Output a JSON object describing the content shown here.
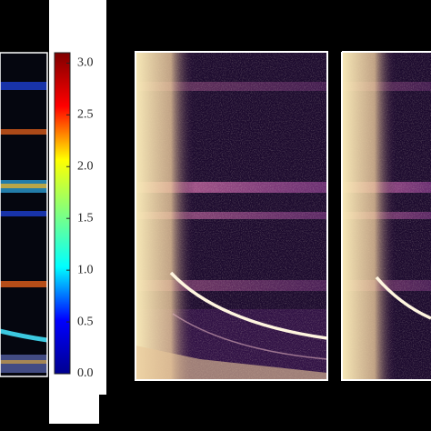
{
  "chart_data": {
    "type": "heatmap",
    "colormap": "jet",
    "clim": [
      0,
      3.1
    ],
    "cticks": [
      {
        "value": 0,
        "label": "0.0"
      },
      0.5,
      {
        "value": 1,
        "label": "1.0"
      },
      1.5,
      {
        "value": 2,
        "label": "2.0"
      },
      2.5,
      {
        "value": 3,
        "label": "3.0"
      }
    ]
  }
}
